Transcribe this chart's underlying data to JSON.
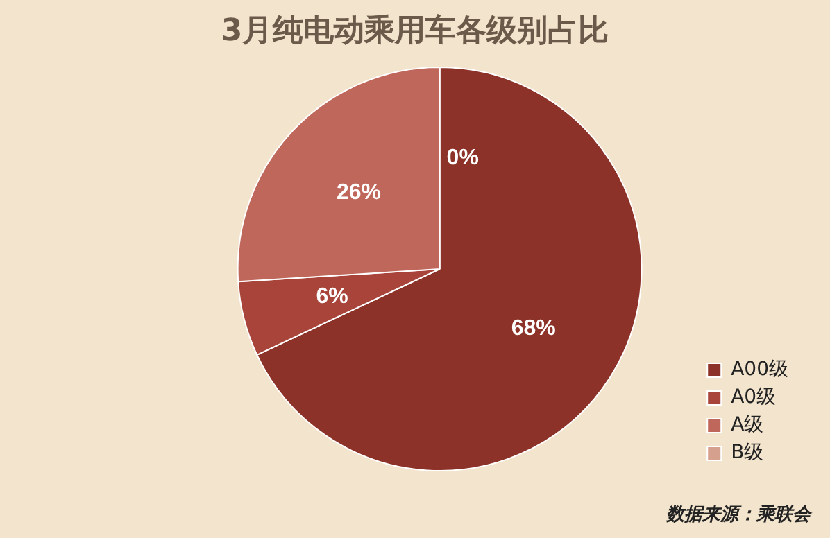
{
  "chart_data": {
    "type": "pie",
    "title": "3月纯电动乘用车各级别占比",
    "categories": [
      "A00级",
      "A0级",
      "A级",
      "B级"
    ],
    "values": [
      68,
      6,
      26,
      0
    ],
    "value_labels": [
      "68%",
      "6%",
      "26%",
      "0%"
    ],
    "colors": [
      "#8c3228",
      "#a8443a",
      "#c0675c",
      "#d6a08e"
    ],
    "legend": "bottom right",
    "annotations": [
      "数据来源：乘联会"
    ]
  }
}
